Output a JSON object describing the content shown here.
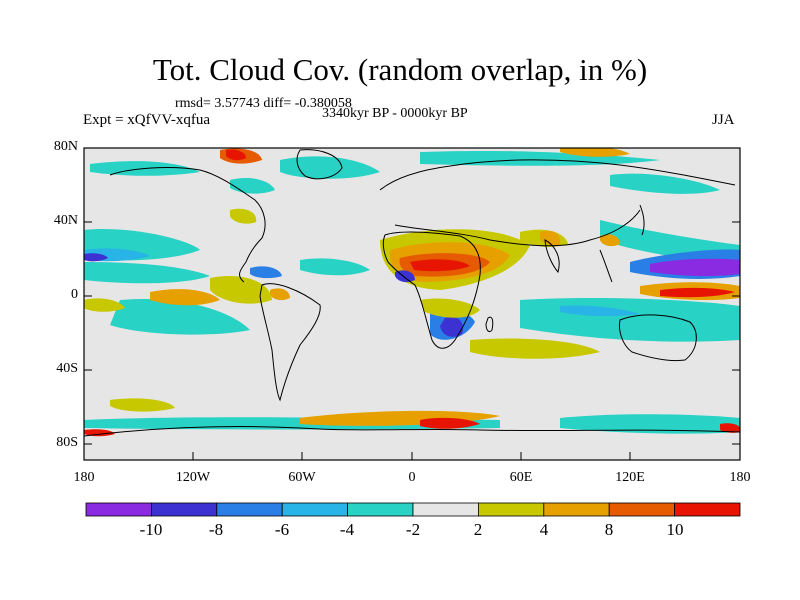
{
  "title": "Tot. Cloud Cov. (random overlap, in %)",
  "stats": "rmsd= 3.57743 diff= -0.380058",
  "period": "3340kyr BP - 0000kyr BP",
  "experiment": "Expt = xQfVV-xqfua",
  "season": "JJA",
  "lat_labels": [
    "80N",
    "40N",
    "0",
    "40S",
    "80S"
  ],
  "lon_labels": [
    "180",
    "120W",
    "60W",
    "0",
    "60E",
    "120E",
    "180"
  ],
  "colorbar": {
    "labels": [
      "-10",
      "-8",
      "-6",
      "-4",
      "-2",
      "2",
      "4",
      "8",
      "10"
    ],
    "colors": [
      "#8a2be2",
      "#3c32d2",
      "#2a7fe6",
      "#28b4e6",
      "#28d2c4",
      "#e6e6e6",
      "#c8c800",
      "#e6a000",
      "#e65a00",
      "#e61400"
    ]
  }
}
